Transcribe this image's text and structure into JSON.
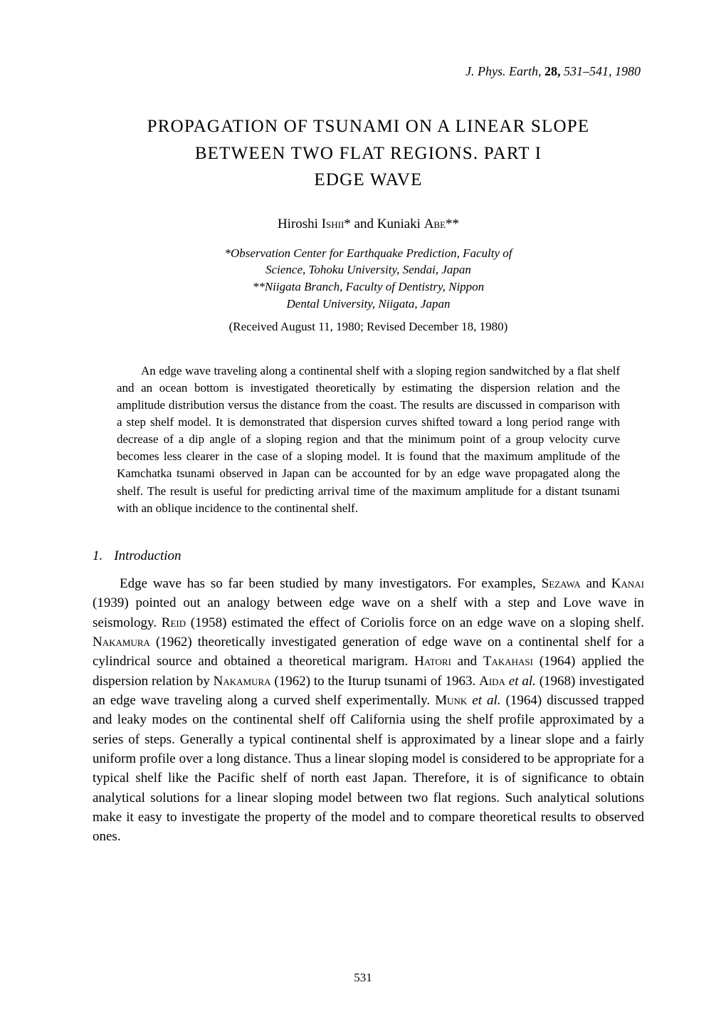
{
  "journal": {
    "name": "J. Phys. Earth,",
    "volume": "28,",
    "pages": "531–541,",
    "year": "1980"
  },
  "title": {
    "line1": "PROPAGATION OF TSUNAMI ON A LINEAR SLOPE",
    "line2": "BETWEEN TWO FLAT REGIONS.   PART I",
    "line3": "EDGE WAVE"
  },
  "authors": {
    "a1_first": "Hiroshi ",
    "a1_last": "Ishii",
    "a1_mark": "*",
    "and": " and ",
    "a2_first": "Kuniaki ",
    "a2_last": "Abe",
    "a2_mark": "**"
  },
  "affiliations": {
    "line1": "*Observation Center for Earthquake Prediction, Faculty of",
    "line2": "Science, Tohoku University, Sendai, Japan",
    "line3": "**Niigata Branch, Faculty of Dentistry, Nippon",
    "line4": "Dental University, Niigata, Japan"
  },
  "dates": "(Received August 11, 1980; Revised December 18, 1980)",
  "abstract": "An edge wave traveling along a continental shelf with a sloping region sandwitched by a flat shelf and an ocean bottom is investigated theoretically by estimating the dispersion relation and the amplitude distribution versus the distance from the coast.   The results are discussed in comparison with a step shelf model. It is demonstrated that dispersion curves shifted toward a long period range with decrease of a dip angle of a sloping region and that the minimum point of a group velocity curve becomes less clearer in the case of a sloping model.   It is found that the maximum amplitude of the Kamchatka tsunami observed in Japan can be accounted for by an edge wave propagated along the shelf.   The result is useful for predicting arrival time of the maximum amplitude for a distant tsunami with an oblique incidence to the continental shelf.",
  "section": {
    "number": "1.",
    "title": "Introduction"
  },
  "body": {
    "t1": "Edge wave has so far been studied by many investigators.   For examples, ",
    "sc1": "Sezawa",
    "t2": " and ",
    "sc2": "Kanai",
    "t3": " (1939) pointed out an analogy between edge wave on a shelf with a step and Love wave in seismology.   ",
    "sc3": "Reid",
    "t4": " (1958) estimated the effect of Coriolis force on an edge wave on a sloping shelf.   ",
    "sc4": "Nakamura",
    "t5": " (1962) theoretically investigated generation of edge wave on a continental shelf for a cylindrical source and obtained a theoretical marigram.   ",
    "sc5": "Hatori",
    "t6": " and ",
    "sc6": "Takahasi",
    "t7": " (1964) applied the dispersion relation by ",
    "sc7": "Nakamura",
    "t8": " (1962) to the Iturup tsunami of 1963.   ",
    "sc8": "Aida",
    "t9": " ",
    "it1": "et al.",
    "t10": " (1968) investigated an edge wave traveling along a curved shelf experimentally. ",
    "sc9": "Munk",
    "t11": " ",
    "it2": "et al.",
    "t12": " (1964) discussed trapped and leaky modes on the continental shelf off California using the shelf profile approximated by a series of steps.   Generally a typical continental shelf is approximated by a linear slope and a fairly uniform profile over a long distance.   Thus a linear sloping model is considered to be appropriate for a typical shelf like the Pacific shelf of north east Japan.   Therefore, it is of significance to obtain analytical solutions for a linear sloping model between two flat regions.   Such analytical solutions make it easy to investigate the property of the model and to compare theoretical results to observed ones."
  },
  "pageNumber": "531"
}
